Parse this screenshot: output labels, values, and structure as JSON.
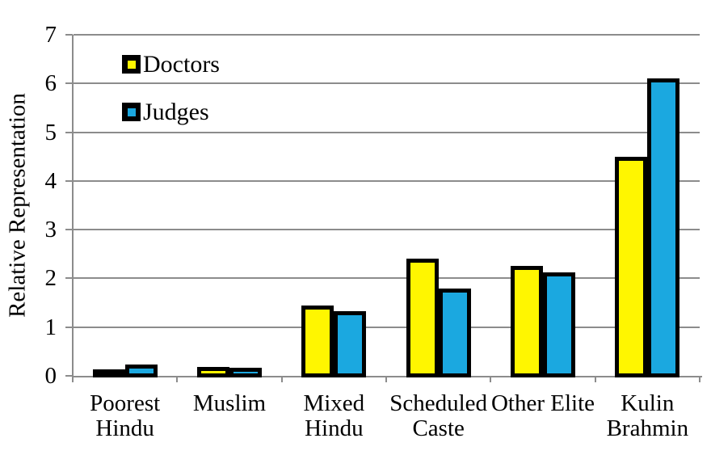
{
  "chart_data": {
    "type": "bar",
    "title": "",
    "ylabel": "Relative Representation",
    "xlabel": "",
    "ylim": [
      0,
      7
    ],
    "yticks": [
      0,
      1,
      2,
      3,
      4,
      5,
      6,
      7
    ],
    "grid": "horizontal gridlines at every integer",
    "legend_position": "inside top-left",
    "categories": [
      "Poorest\nHindu",
      "Muslim",
      "Mixed\nHindu",
      "Scheduled\nCaste",
      "Other Elite",
      "Kulin\nBrahmin"
    ],
    "series": [
      {
        "name": "Doctors",
        "color": "#FFF600",
        "values": [
          0.08,
          0.13,
          1.4,
          2.36,
          2.2,
          4.45
        ]
      },
      {
        "name": "Judges",
        "color": "#1BA8E0",
        "values": [
          0.18,
          0.12,
          1.28,
          1.75,
          2.07,
          6.06
        ]
      }
    ],
    "colors": {
      "bar_outline": "#000000",
      "gridline": "#8C8C8C",
      "background": "#FFFFFF",
      "text": "#000000"
    }
  }
}
